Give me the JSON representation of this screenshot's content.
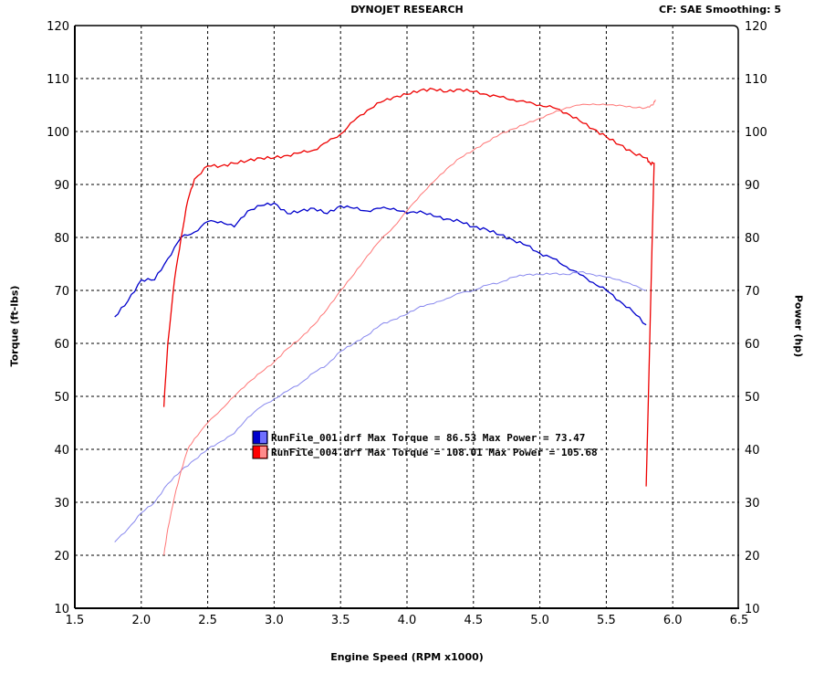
{
  "chart_data": {
    "type": "line",
    "title": "DYNOJET RESEARCH",
    "subtitle": "CF: SAE  Smoothing: 5",
    "xlabel": "Engine Speed (RPM x1000)",
    "ylabel_left": "Torque (ft-lbs)",
    "ylabel_right": "Power (hp)",
    "xlim": [
      1.5,
      6.5
    ],
    "ylim": [
      10,
      120
    ],
    "grid": true,
    "x_ticks": [
      "1.5",
      "2.0",
      "2.5",
      "3.0",
      "3.5",
      "4.0",
      "4.5",
      "5.0",
      "5.5",
      "6.0",
      "6.5"
    ],
    "y_ticks": [
      "10",
      "20",
      "30",
      "40",
      "50",
      "60",
      "70",
      "80",
      "90",
      "100",
      "110",
      "120"
    ],
    "legend": [
      {
        "file": "RunFile_001.drf",
        "text": "RunFile_001.drf Max Torque = 86.53     Max Power = 73.47",
        "color": "#0000cc"
      },
      {
        "file": "RunFile_004.drf",
        "text": "RunFile_004.drf Max Torque = 108.01     Max Power = 105.68",
        "color": "#ff0000"
      }
    ],
    "series": [
      {
        "run": "RunFile_001.drf",
        "measure": "torque",
        "color": "#0000cc",
        "x": [
          1.8,
          1.9,
          2.0,
          2.1,
          2.2,
          2.3,
          2.4,
          2.5,
          2.6,
          2.7,
          2.8,
          2.9,
          3.0,
          3.1,
          3.2,
          3.3,
          3.4,
          3.5,
          3.6,
          3.7,
          3.8,
          3.9,
          4.0,
          4.1,
          4.2,
          4.3,
          4.4,
          4.5,
          4.6,
          4.7,
          4.8,
          4.9,
          5.0,
          5.1,
          5.2,
          5.3,
          5.4,
          5.5,
          5.6,
          5.7,
          5.8
        ],
        "y": [
          65,
          68,
          72,
          72,
          76,
          80,
          81,
          83,
          83,
          82,
          85,
          86,
          86.5,
          84.5,
          85,
          85.5,
          84.5,
          86,
          85.5,
          85,
          85.5,
          85.5,
          84.5,
          85,
          84,
          83.5,
          83,
          82,
          81.5,
          80.5,
          79.5,
          78.5,
          77,
          76,
          74.5,
          73,
          71.5,
          70,
          68,
          66,
          63.5
        ]
      },
      {
        "run": "RunFile_001.drf",
        "measure": "power",
        "color": "#8888ee",
        "x": [
          1.8,
          1.9,
          2.0,
          2.1,
          2.2,
          2.3,
          2.4,
          2.5,
          2.6,
          2.7,
          2.8,
          2.9,
          3.0,
          3.1,
          3.2,
          3.3,
          3.4,
          3.5,
          3.6,
          3.7,
          3.8,
          3.9,
          4.0,
          4.1,
          4.2,
          4.3,
          4.4,
          4.5,
          4.6,
          4.7,
          4.8,
          4.9,
          5.0,
          5.1,
          5.2,
          5.3,
          5.4,
          5.5,
          5.6,
          5.7,
          5.8
        ],
        "y": [
          22.5,
          25,
          28,
          30,
          33.5,
          36,
          38,
          40,
          41.5,
          43,
          46,
          48,
          49.5,
          51,
          52.5,
          54.5,
          56,
          58.5,
          60,
          61.5,
          63.5,
          64.5,
          65.5,
          67,
          67.5,
          68.5,
          69.5,
          70,
          71,
          71.5,
          72.5,
          73,
          73,
          73.2,
          73,
          73.5,
          73,
          72.5,
          72,
          71,
          70
        ]
      },
      {
        "run": "RunFile_004.drf",
        "measure": "torque",
        "color": "#ee0000",
        "x": [
          2.17,
          2.2,
          2.25,
          2.3,
          2.35,
          2.4,
          2.5,
          2.6,
          2.7,
          2.8,
          2.9,
          3.0,
          3.1,
          3.2,
          3.3,
          3.4,
          3.5,
          3.6,
          3.7,
          3.8,
          3.9,
          4.0,
          4.1,
          4.2,
          4.3,
          4.4,
          4.5,
          4.6,
          4.7,
          4.8,
          4.9,
          5.0,
          5.1,
          5.2,
          5.3,
          5.4,
          5.5,
          5.6,
          5.7,
          5.8,
          5.83,
          5.86,
          5.8
        ],
        "y": [
          48,
          60,
          72,
          80,
          87,
          91,
          93.5,
          93.5,
          94,
          94.5,
          95,
          95,
          95.5,
          96,
          96.5,
          98,
          99.5,
          102,
          104,
          105.5,
          106.5,
          107,
          107.8,
          108,
          107.5,
          108,
          107.5,
          107,
          106.5,
          106,
          105.5,
          105,
          104.5,
          103.5,
          102,
          100.5,
          99,
          97.5,
          96,
          95,
          94,
          94,
          33
        ]
      },
      {
        "run": "RunFile_004.drf",
        "measure": "power",
        "color": "#ff7777",
        "x": [
          2.17,
          2.2,
          2.25,
          2.3,
          2.35,
          2.4,
          2.5,
          2.6,
          2.7,
          2.8,
          2.9,
          3.0,
          3.1,
          3.2,
          3.3,
          3.4,
          3.5,
          3.6,
          3.7,
          3.8,
          3.9,
          4.0,
          4.1,
          4.2,
          4.3,
          4.4,
          4.5,
          4.6,
          4.7,
          4.8,
          4.9,
          5.0,
          5.1,
          5.2,
          5.3,
          5.4,
          5.5,
          5.6,
          5.7,
          5.8,
          5.85,
          5.87
        ],
        "y": [
          20,
          25,
          31,
          36,
          40,
          42,
          45,
          47.5,
          50,
          52.5,
          54.5,
          56.5,
          59,
          61,
          63.5,
          66.5,
          70,
          73,
          76.5,
          79.5,
          82,
          85,
          88,
          90.5,
          93,
          95,
          96.5,
          98,
          99.5,
          100.5,
          101.5,
          102.5,
          103.5,
          104.5,
          105,
          105.2,
          105,
          105,
          104.5,
          104.5,
          105,
          106
        ]
      }
    ]
  }
}
